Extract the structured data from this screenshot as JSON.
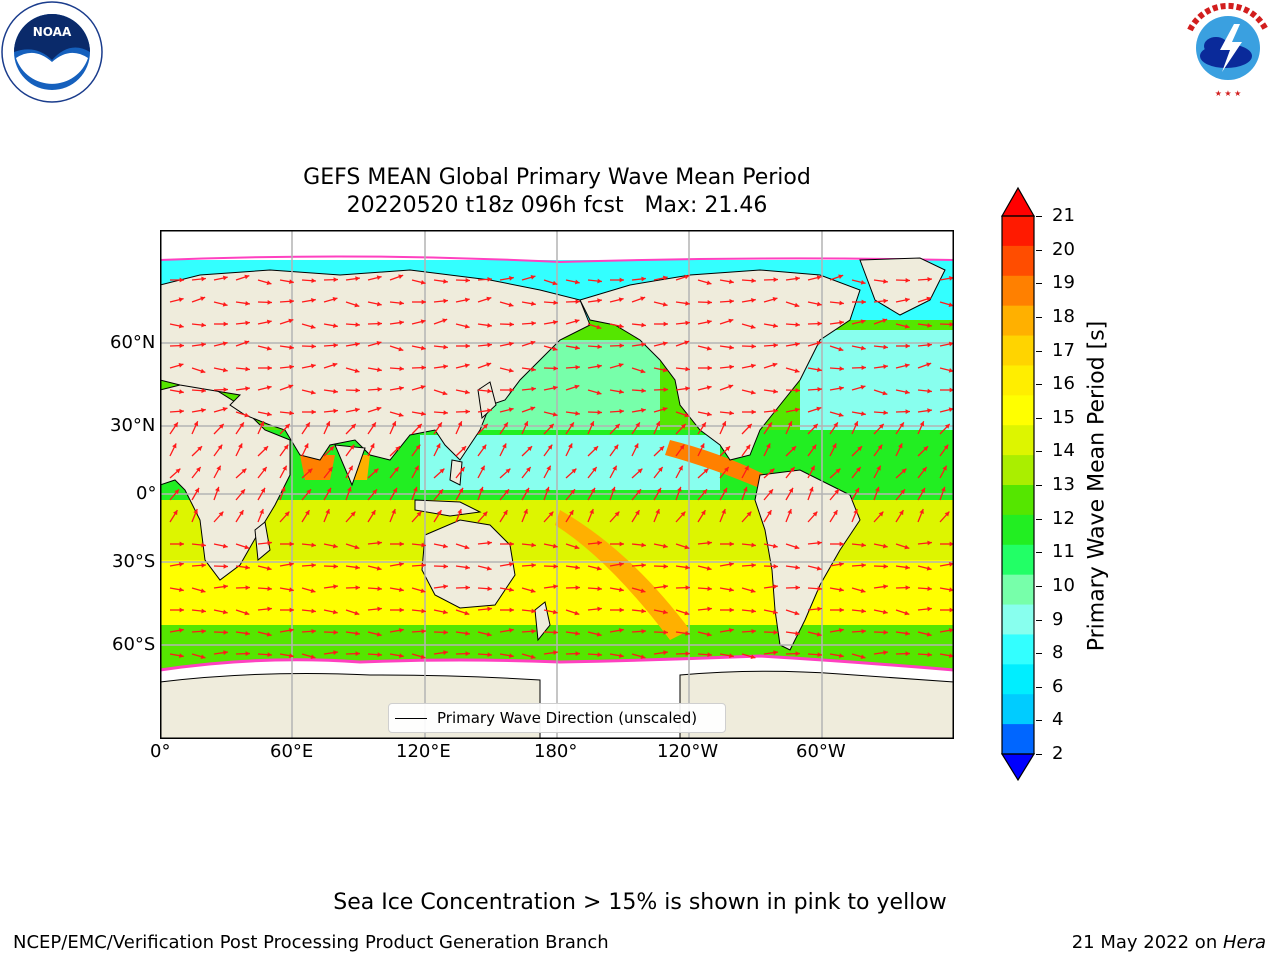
{
  "title": {
    "line1": "GEFS MEAN Global Primary Wave Mean Period",
    "line2": "20220520 t18z 096h fcst   Max: 21.46"
  },
  "logos": {
    "noara": {
      "name": "NOAA",
      "ring_text": "NATIONAL OCEANIC AND ATMOSPHERIC ADMINISTRATION · U.S. DEPARTMENT OF COMMERCE"
    },
    "nws": {
      "ring_text": "NATIONAL WEATHER SERVICE"
    }
  },
  "map": {
    "lat_labels": [
      "60°N",
      "30°N",
      "0°",
      "30°S",
      "60°S"
    ],
    "lon_labels": [
      "0°",
      "60°E",
      "120°E",
      "180°",
      "120°W",
      "60°W"
    ],
    "legend_label": "Primary Wave Direction (unscaled)",
    "land_color": "#efecdc",
    "arrow_color": "#ff1a1a",
    "grid_color": "#b3b3b3"
  },
  "colorbar": {
    "label": "Primary Wave Mean Period [s]",
    "ticks": [
      "21",
      "20",
      "19",
      "18",
      "17",
      "16",
      "15",
      "14",
      "13",
      "12",
      "11",
      "10",
      "9",
      "8",
      "6",
      "4",
      "2"
    ],
    "colors": [
      "#ff1a00",
      "#ff4d00",
      "#ff8000",
      "#ffb000",
      "#ffd400",
      "#ffee00",
      "#ffff00",
      "#ddf500",
      "#aaee00",
      "#55e600",
      "#22ee22",
      "#22ff66",
      "#77ffaa",
      "#88ffee",
      "#33ffff",
      "#00eeff",
      "#00ccff",
      "#0066ff"
    ],
    "over_color": "#ff0000",
    "under_color": "#0000ff"
  },
  "caption": "Sea Ice Concentration > 15% is shown in pink to yellow",
  "footer": {
    "left": "NCEP/EMC/Verification Post Processing Product Generation Branch",
    "right_prefix": "21 May 2022 on ",
    "right_host": "Hera"
  }
}
